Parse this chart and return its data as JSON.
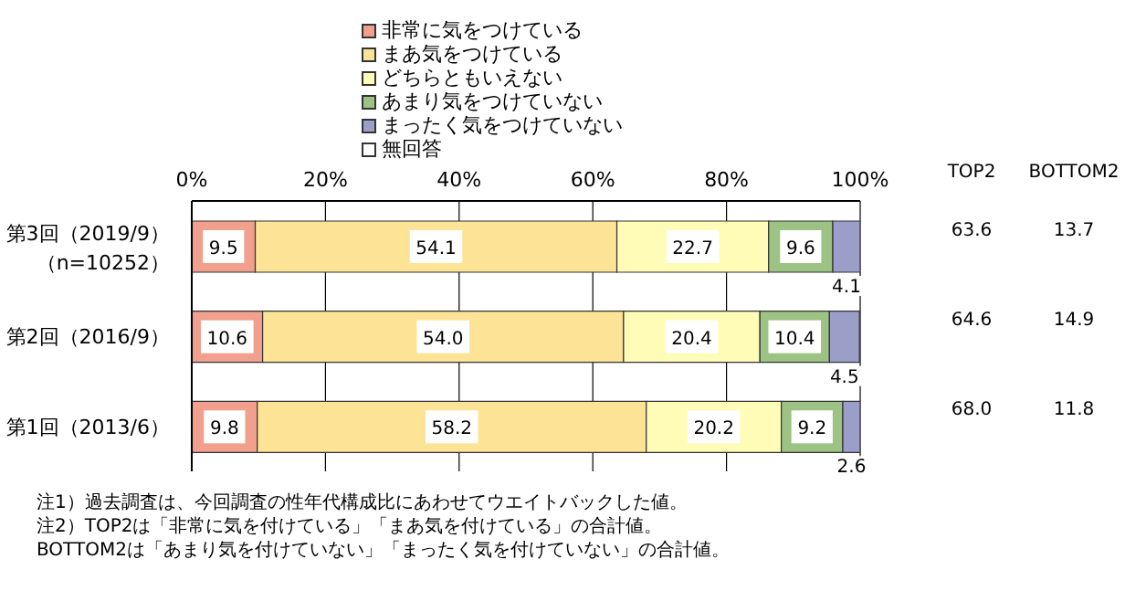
{
  "chart_data": {
    "type": "bar",
    "orientation": "horizontal",
    "stacked": true,
    "categories": [
      "第3回（2019/9）（n=10252）",
      "第2回（2016/9）",
      "第1回（2013/6）"
    ],
    "series": [
      {
        "name": "非常に気をつけている",
        "color": "#f0a08c",
        "values": [
          9.5,
          10.6,
          9.8
        ],
        "value_labels": [
          "9.5",
          "10.6",
          "9.8"
        ]
      },
      {
        "name": "まあ気をつけている",
        "color": "#fde396",
        "values": [
          54.1,
          54.0,
          58.2
        ],
        "value_labels": [
          "54.1",
          "54.0",
          "58.2"
        ]
      },
      {
        "name": "どちらともいえない",
        "color": "#fffcb8",
        "values": [
          22.7,
          20.4,
          20.2
        ],
        "value_labels": [
          "22.7",
          "20.4",
          "20.2"
        ]
      },
      {
        "name": "あまり気をつけていない",
        "color": "#9dc384",
        "values": [
          9.6,
          10.4,
          9.2
        ],
        "value_labels": [
          "9.6",
          "10.4",
          "9.2"
        ]
      },
      {
        "name": "まったく気をつけていない",
        "color": "#9a9ec8",
        "values": [
          4.1,
          4.5,
          2.6
        ],
        "value_labels": [
          "4.1",
          "4.5",
          "2.6"
        ]
      },
      {
        "name": "無回答",
        "color": "#ffffff",
        "values": [
          0,
          0,
          0
        ],
        "value_labels": [
          null,
          null,
          null
        ]
      }
    ],
    "xlim": [
      0,
      100
    ],
    "xticks": [
      {
        "value": 0,
        "label": "0%"
      },
      {
        "value": 20,
        "label": "20%"
      },
      {
        "value": 40,
        "label": "40%"
      },
      {
        "value": 60,
        "label": "60%"
      },
      {
        "value": 80,
        "label": "80%"
      },
      {
        "value": 100,
        "label": "100%"
      }
    ],
    "grid": "x",
    "legend": "top",
    "annotations": [
      "TOP2",
      "BOTTOM2",
      "63.6",
      "13.7",
      "64.6",
      "14.9",
      "68.0",
      "11.8",
      "注1）過去調査は、今回調査の性年代構成比にあわせてウエイトバックした値。",
      "注2）TOP2は「非常に気を付けている」「まあ気を付けている」の合計値。",
      "BOTTOM2は「あまり気を付けていない」「まったく気を付けていない」の合計値。"
    ]
  }
}
